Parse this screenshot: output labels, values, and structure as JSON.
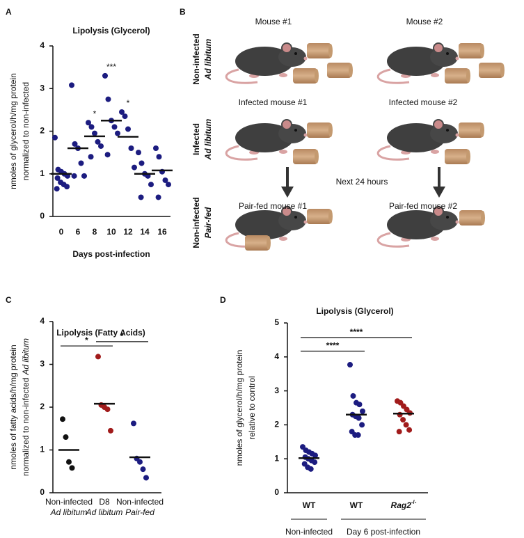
{
  "chart_data": [
    {
      "panel": "A",
      "type": "dot",
      "title": "Lipolysis (Glycerol)",
      "ylabel": [
        "nmoles of glycerol/h/mg protein",
        "normalized to non-infected"
      ],
      "xlabel": "Days post-infection",
      "ylim": [
        0,
        4
      ],
      "yticks": [
        0,
        1,
        2,
        3,
        4
      ],
      "color": "#1c1c80",
      "groups": [
        {
          "label": "0",
          "values": [
            1.85,
            1.1,
            1.05,
            1.0,
            0.95,
            0.9,
            0.8,
            0.75,
            0.7,
            0.65
          ],
          "median": 1.0
        },
        {
          "label": "6",
          "values": [
            3.08,
            1.7,
            1.6,
            1.25,
            0.95,
            0.95
          ],
          "median": 1.6
        },
        {
          "label": "8",
          "values": [
            2.2,
            2.1,
            1.95,
            1.75,
            1.65,
            1.4
          ],
          "median": 1.88,
          "annotation": "*"
        },
        {
          "label": "10",
          "values": [
            3.3,
            2.75,
            2.25,
            2.1,
            1.95,
            1.45
          ],
          "median": 2.25,
          "annotation": "***"
        },
        {
          "label": "12",
          "values": [
            2.45,
            2.35,
            2.05,
            1.6,
            1.15
          ],
          "median": 1.87,
          "annotation": "*"
        },
        {
          "label": "14",
          "values": [
            1.5,
            1.25,
            1.0,
            0.95,
            0.75,
            0.45
          ],
          "median": 1.0
        },
        {
          "label": "16",
          "values": [
            1.6,
            1.4,
            1.05,
            0.85,
            0.75,
            0.45
          ],
          "median": 1.08
        }
      ]
    },
    {
      "panel": "C",
      "type": "dot",
      "title": "Lipolysis (Fatty Acids)",
      "ylabel": [
        "nmoles of fatty acids/h/mg protein",
        "normalized to non-infected",
        "Ad libitum"
      ],
      "ylim": [
        0,
        4
      ],
      "yticks": [
        0,
        1,
        2,
        3,
        4
      ],
      "groups": [
        {
          "label": [
            "Non-infected",
            "Ad libitum"
          ],
          "color": "#111111",
          "values": [
            1.72,
            1.3,
            0.72,
            0.58
          ],
          "median": 1.0
        },
        {
          "label": [
            "D8",
            "Ad libitum"
          ],
          "color": "#a11b1b",
          "values": [
            3.18,
            2.05,
            2.0,
            1.95,
            1.45
          ],
          "median": 2.08
        },
        {
          "label": [
            "Non-infected",
            "Pair-fed"
          ],
          "color": "#1c1c80",
          "values": [
            1.62,
            0.8,
            0.72,
            0.55,
            0.35
          ],
          "median": 0.83
        }
      ],
      "comparisons": [
        {
          "from": 0,
          "to": 1,
          "label": "*"
        },
        {
          "from": 1,
          "to": 2,
          "label": "*"
        }
      ]
    },
    {
      "panel": "D",
      "type": "dot",
      "title": "Lipolysis (Glycerol)",
      "ylabel": [
        "nmoles of glycerol/h/mg protein",
        "relative to control"
      ],
      "ylim": [
        0,
        5
      ],
      "yticks": [
        0,
        1,
        2,
        3,
        4,
        5
      ],
      "groups": [
        {
          "label": "WT",
          "color": "#1c1c80",
          "values": [
            1.35,
            1.25,
            1.2,
            1.15,
            1.1,
            1.05,
            1.0,
            0.95,
            0.9,
            0.85,
            0.75,
            0.7
          ],
          "median": 1.02
        },
        {
          "label": "WT",
          "color": "#1c1c80",
          "values": [
            3.77,
            2.85,
            2.65,
            2.6,
            2.4,
            2.3,
            2.25,
            2.2,
            2.0,
            1.8,
            1.7,
            1.7
          ],
          "median": 2.3
        },
        {
          "label": "Rag2",
          "superscript": "-/-",
          "color": "#a11b1b",
          "values": [
            2.7,
            2.65,
            2.55,
            2.45,
            2.35,
            2.3,
            2.15,
            2.0,
            1.85,
            1.8
          ],
          "median": 2.33
        }
      ],
      "comparisons": [
        {
          "from": 0,
          "to": 1,
          "label": "****"
        },
        {
          "from": 0,
          "to": 2,
          "label": "****"
        }
      ],
      "footer": [
        "Non-infected",
        "Day 6 post-infection"
      ]
    }
  ],
  "diagram": {
    "panel": "B",
    "columns": [
      "Mouse #1",
      "Mouse #2"
    ],
    "rows": [
      {
        "title": "Non-infected",
        "subtitle": "Ad libitum"
      },
      {
        "title": "Infected",
        "subtitle": "Ad libitum"
      },
      {
        "title": "Non-infected",
        "subtitle": "Pair-fed"
      }
    ],
    "captions": [
      [
        "Infected mouse  #1",
        "Infected mouse #2"
      ],
      [
        "Pair-fed mouse #1",
        "Pair-fed mouse #2"
      ]
    ],
    "transition": "Next 24 hours"
  }
}
